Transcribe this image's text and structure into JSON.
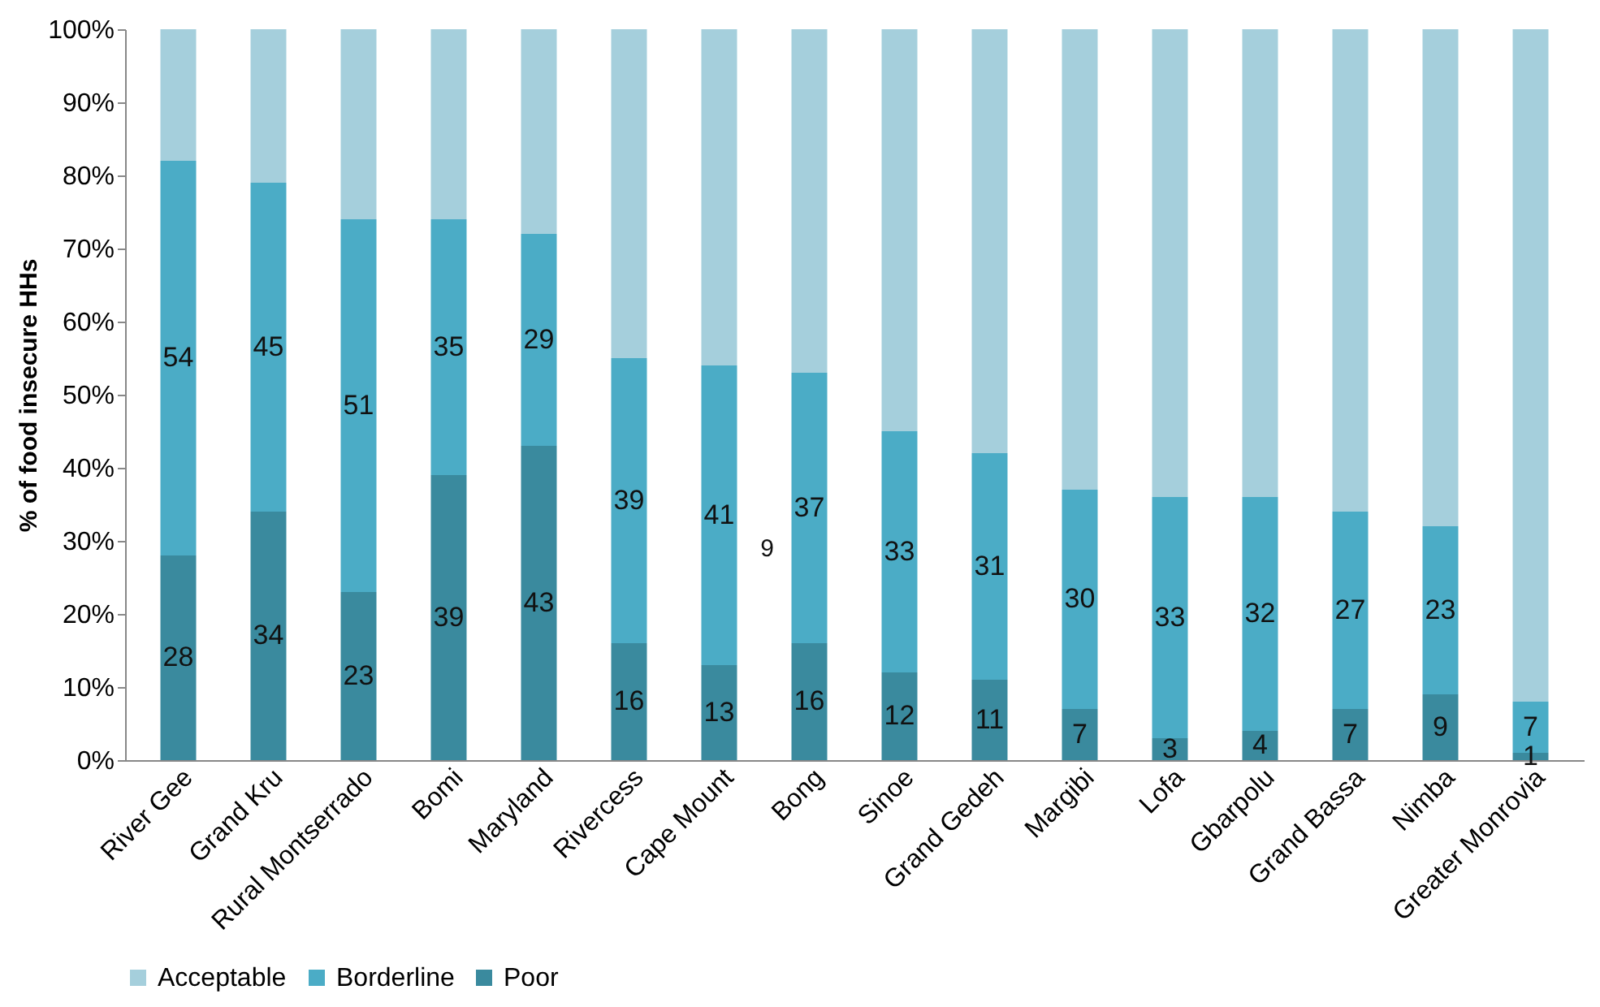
{
  "chart_data": {
    "type": "bar",
    "stacked": true,
    "ylabel": "% of food insecure HHs",
    "categories": [
      "River Gee",
      "Grand Kru",
      "Rural Montserrado",
      "Bomi",
      "Maryland",
      "Rivercess",
      "Cape Mount",
      "Bong",
      "Sinoe",
      "Grand Gedeh",
      "Margibi",
      "Lofa",
      "Gbarpolu",
      "Grand Bassa",
      "Nimba",
      "Greater Monrovia"
    ],
    "series": [
      {
        "name": "Poor",
        "color": "#3a8a9e",
        "values": [
          28,
          34,
          23,
          39,
          43,
          16,
          13,
          16,
          12,
          11,
          7,
          3,
          4,
          7,
          9,
          1
        ],
        "value_labels": [
          "28",
          "34",
          "23",
          "39",
          "43",
          "16",
          "13",
          "16",
          "12",
          "11",
          "7",
          "3",
          "4",
          "7",
          "9",
          "1"
        ]
      },
      {
        "name": "Borderline",
        "color": "#4bacc6",
        "values": [
          54,
          45,
          51,
          35,
          29,
          39,
          41,
          37,
          33,
          31,
          30,
          33,
          32,
          27,
          23,
          7
        ],
        "value_labels": [
          "54",
          "45",
          "51",
          "35",
          "29",
          "39",
          "41",
          "37",
          "33",
          "31",
          "30",
          "33",
          "32",
          "27",
          "23",
          "7"
        ]
      },
      {
        "name": "Acceptable",
        "color": "#a5cfdc",
        "values": [
          18,
          21,
          26,
          26,
          28,
          45,
          46,
          47,
          55,
          58,
          63,
          64,
          64,
          66,
          68,
          92
        ]
      }
    ],
    "ylim": [
      0,
      100
    ],
    "yticks": [
      {
        "value": 0,
        "label": "0%"
      },
      {
        "value": 10,
        "label": "10%"
      },
      {
        "value": 20,
        "label": "20%"
      },
      {
        "value": 30,
        "label": "30%"
      },
      {
        "value": 40,
        "label": "40%"
      },
      {
        "value": 50,
        "label": "50%"
      },
      {
        "value": 60,
        "label": "60%"
      },
      {
        "value": 70,
        "label": "70%"
      },
      {
        "value": 80,
        "label": "80%"
      },
      {
        "value": 90,
        "label": "90%"
      },
      {
        "value": 100,
        "label": "100%"
      }
    ],
    "annotations": [
      {
        "text": "9",
        "x": "Bong",
        "y": 29
      }
    ],
    "legend": "bottom",
    "grid": false
  }
}
